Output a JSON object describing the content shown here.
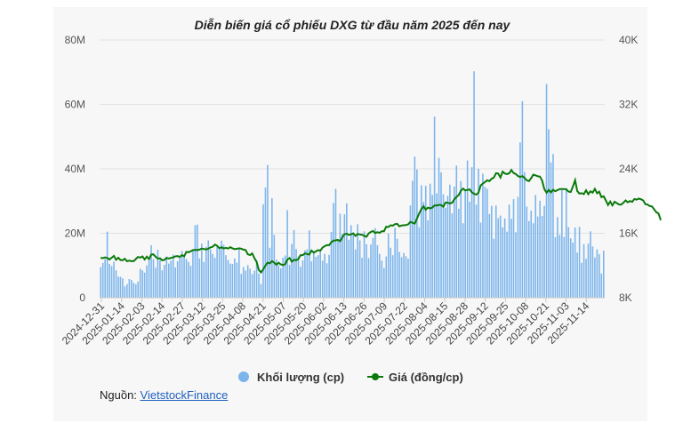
{
  "chart_data": {
    "type": "bar+line",
    "title": "Diễn biến giá cổ phiếu DXG từ đầu năm 2025 đến nay",
    "left_axis": {
      "label": "Khối lượng (cp)",
      "range": [
        0,
        80000000
      ],
      "ticks": [
        "0",
        "20M",
        "40M",
        "60M",
        "80M"
      ]
    },
    "right_axis": {
      "label": "Giá (đồng/cp)",
      "range": [
        8000,
        40000
      ],
      "ticks": [
        "8K",
        "16K",
        "24K",
        "32K",
        "40K"
      ]
    },
    "x_tick_labels": [
      "2024-12-31",
      "2025-01-14",
      "2025-02-03",
      "2025-02-14",
      "2025-02-27",
      "2025-03-12",
      "2025-03-25",
      "2025-04-08",
      "2025-04-21",
      "2025-05-07",
      "2025-05-20",
      "2025-06-02",
      "2025-06-13",
      "2025-06-26",
      "2025-07-09",
      "2025-07-22",
      "2025-08-04",
      "2025-08-15",
      "2025-08-28",
      "2025-09-12",
      "2025-09-25",
      "2025-10-08",
      "2025-10-21",
      "2025-11-03",
      "2025-11-14"
    ],
    "series": [
      {
        "name": "Khối lượng (cp)",
        "kind": "bar",
        "color": "#7cb5ec",
        "values": [
          9.5,
          10.8,
          12.0,
          20.5,
          10.5,
          9.8,
          11.2,
          8.5,
          6.5,
          6.5,
          6.0,
          3.5,
          4.2,
          5.8,
          5.5,
          4.6,
          4.2,
          5.0,
          9.0,
          8.5,
          7.8,
          10.0,
          11.5,
          16.3,
          12.0,
          9.3,
          14.9,
          11.7,
          8.5,
          10.2,
          12.8,
          10.6,
          11.5,
          13.4,
          9.4,
          11.3,
          12.5,
          14.5,
          13.1,
          12.0,
          11.1,
          9.9,
          14.5,
          22.5,
          22.7,
          12.2,
          16.8,
          11.1,
          15.8,
          17.8,
          15.0,
          13.6,
          12.4,
          16.0,
          15.1,
          17.7,
          16.4,
          13.2,
          11.7,
          10.6,
          10.5,
          12.2,
          10.9,
          15.3,
          7.4,
          9.5,
          8.4,
          10.1,
          9.0,
          7.3,
          8.4,
          11.5,
          7.5,
          4.2,
          29.0,
          34.2,
          41.2,
          15.5,
          30.9,
          19.5,
          11.8,
          10.1,
          9.1,
          12.4,
          13.1,
          27.2,
          10.2,
          16.7,
          21.0,
          15.1,
          12.8,
          9.6,
          11.6,
          14.7,
          15.0,
          20.9,
          11.3,
          14.5,
          12.7,
          13.2,
          15.0,
          11.5,
          13.6,
          10.7,
          13.3,
          20.4,
          29.4,
          33.8,
          17.6,
          26.1,
          19.8,
          25.9,
          29.3,
          18.0,
          22.5,
          19.6,
          15.0,
          22.8,
          17.8,
          12.4,
          20.6,
          16.6,
          12.3,
          16.5,
          18.6,
          21.6,
          16.3,
          13.6,
          11.5,
          9.2,
          12.8,
          19.9,
          15.5,
          13.2,
          21.7,
          18.3,
          14.2,
          12.6,
          13.9,
          12.9,
          12.1,
          28.6,
          36.3,
          43.8,
          39.8,
          21.9,
          34.9,
          29.7,
          34.7,
          24.0,
          35.4,
          31.9,
          56.2,
          32.4,
          43.4,
          38.9,
          32.1,
          27.9,
          31.6,
          35.1,
          26.2,
          34.5,
          41.0,
          27.6,
          36.2,
          23.1,
          33.6,
          42.6,
          29.8,
          40.5,
          70.3,
          28.9,
          40.0,
          23.3,
          38.5,
          34.4,
          33.8,
          26.0,
          28.5,
          18.3,
          28.6,
          24.7,
          25.5,
          21.8,
          24.6,
          20.5,
          28.9,
          24.5,
          30.6,
          20.3,
          31.3,
          48.2,
          61.0,
          39.0,
          28.3,
          23.8,
          27.0,
          23.1,
          31.9,
          25.2,
          30.1,
          25.4,
          28.5,
          66.3,
          52.3,
          42.0,
          44.6,
          18.8,
          25.0,
          19.5,
          33.4,
          18.9,
          34.1,
          21.9,
          18.4,
          17.1,
          21.8,
          14.0,
          22.0,
          10.8,
          16.6,
          12.1,
          16.8,
          20.6,
          15.9,
          12.5,
          15.0,
          13.5,
          7.5,
          14.6
        ]
      },
      {
        "name": "Giá (đồng/cp)",
        "kind": "line",
        "color": "#0a7a0a",
        "values": [
          12.96,
          12.91,
          13.0,
          12.93,
          12.75,
          12.97,
          13.19,
          12.71,
          12.97,
          12.68,
          12.66,
          12.83,
          12.52,
          12.6,
          12.53,
          12.54,
          12.8,
          13.06,
          12.98,
          13.12,
          12.74,
          13.1,
          12.79,
          13.36,
          13.39,
          13.09,
          12.86,
          12.89,
          12.64,
          12.7,
          12.94,
          12.85,
          12.94,
          13.0,
          13.13,
          13.16,
          13.07,
          13.29,
          13.14,
          13.68,
          13.65,
          13.76,
          13.91,
          13.93,
          13.92,
          13.97,
          14.1,
          14.04,
          14.0,
          14.08,
          14.25,
          14.33,
          14.6,
          14.45,
          14.15,
          14.27,
          14.11,
          14.19,
          14.1,
          14.27,
          14.13,
          14.04,
          14.07,
          14.13,
          14.08,
          13.97,
          13.92,
          13.39,
          13.3,
          13.5,
          12.91,
          12.45,
          11.45,
          11.14,
          11.52,
          12.01,
          12.35,
          12.26,
          12.55,
          12.35,
          12.09,
          12.34,
          12.14,
          12.05,
          12.17,
          12.73,
          12.93,
          12.47,
          12.71,
          12.65,
          12.81,
          13.29,
          13.29,
          13.51,
          13.42,
          13.35,
          13.86,
          13.59,
          13.75,
          13.92,
          13.84,
          14.22,
          14.4,
          14.52,
          14.52,
          14.87,
          15.09,
          15.12,
          15.18,
          15.01,
          15.49,
          15.89,
          15.95,
          15.8,
          15.87,
          15.99,
          15.67,
          15.92,
          15.84,
          15.82,
          15.67,
          15.57,
          15.98,
          16.17,
          16.29,
          16.03,
          16.13,
          16.06,
          16.25,
          16.25,
          16.82,
          16.77,
          16.99,
          16.95,
          17.14,
          17.17,
          16.86,
          16.97,
          16.99,
          17.01,
          17.11,
          17.41,
          17.3,
          17.2,
          17.82,
          18.46,
          18.99,
          19.35,
          18.93,
          19.19,
          19.09,
          19.19,
          19.46,
          19.44,
          19.53,
          19.51,
          19.29,
          19.83,
          19.78,
          19.72,
          19.79,
          20.2,
          20.51,
          20.74,
          21.27,
          21.55,
          21.32,
          21.39,
          21.45,
          21.09,
          20.9,
          20.8,
          21.03,
          21.94,
          22.17,
          22.37,
          22.58,
          22.48,
          22.76,
          22.92,
          23.46,
          23.42,
          22.92,
          23.65,
          23.43,
          23.35,
          23.45,
          23.86,
          23.48,
          23.35,
          23.11,
          22.98,
          23.09,
          22.88,
          22.58,
          22.48,
          22.85,
          23.27,
          23.19,
          23.07,
          23.04,
          22.54,
          21.47,
          21.03,
          21.39,
          21.08,
          21.4,
          21.22,
          21.36,
          21.5,
          21.49,
          21.5,
          21.44,
          21.17,
          21.12,
          21.8,
          22.59,
          21.25,
          20.92,
          20.98,
          20.87,
          21.34,
          20.85,
          21.21,
          21.04,
          21.51,
          20.97,
          21.16,
          20.49,
          20.59,
          20.08,
          19.51,
          19.94,
          19.47,
          19.92,
          19.74,
          19.58,
          19.56,
          19.79,
          20.08,
          19.85,
          20.01,
          19.89,
          20.26,
          20.17,
          20.3,
          20.23,
          20.08,
          19.62,
          19.56,
          19.38,
          19.33,
          18.97,
          18.62,
          18.46,
          17.62
        ]
      }
    ],
    "legend_position": "bottom"
  },
  "source": {
    "prefix": "Nguồn: ",
    "link_text": "VietstockFinance"
  }
}
